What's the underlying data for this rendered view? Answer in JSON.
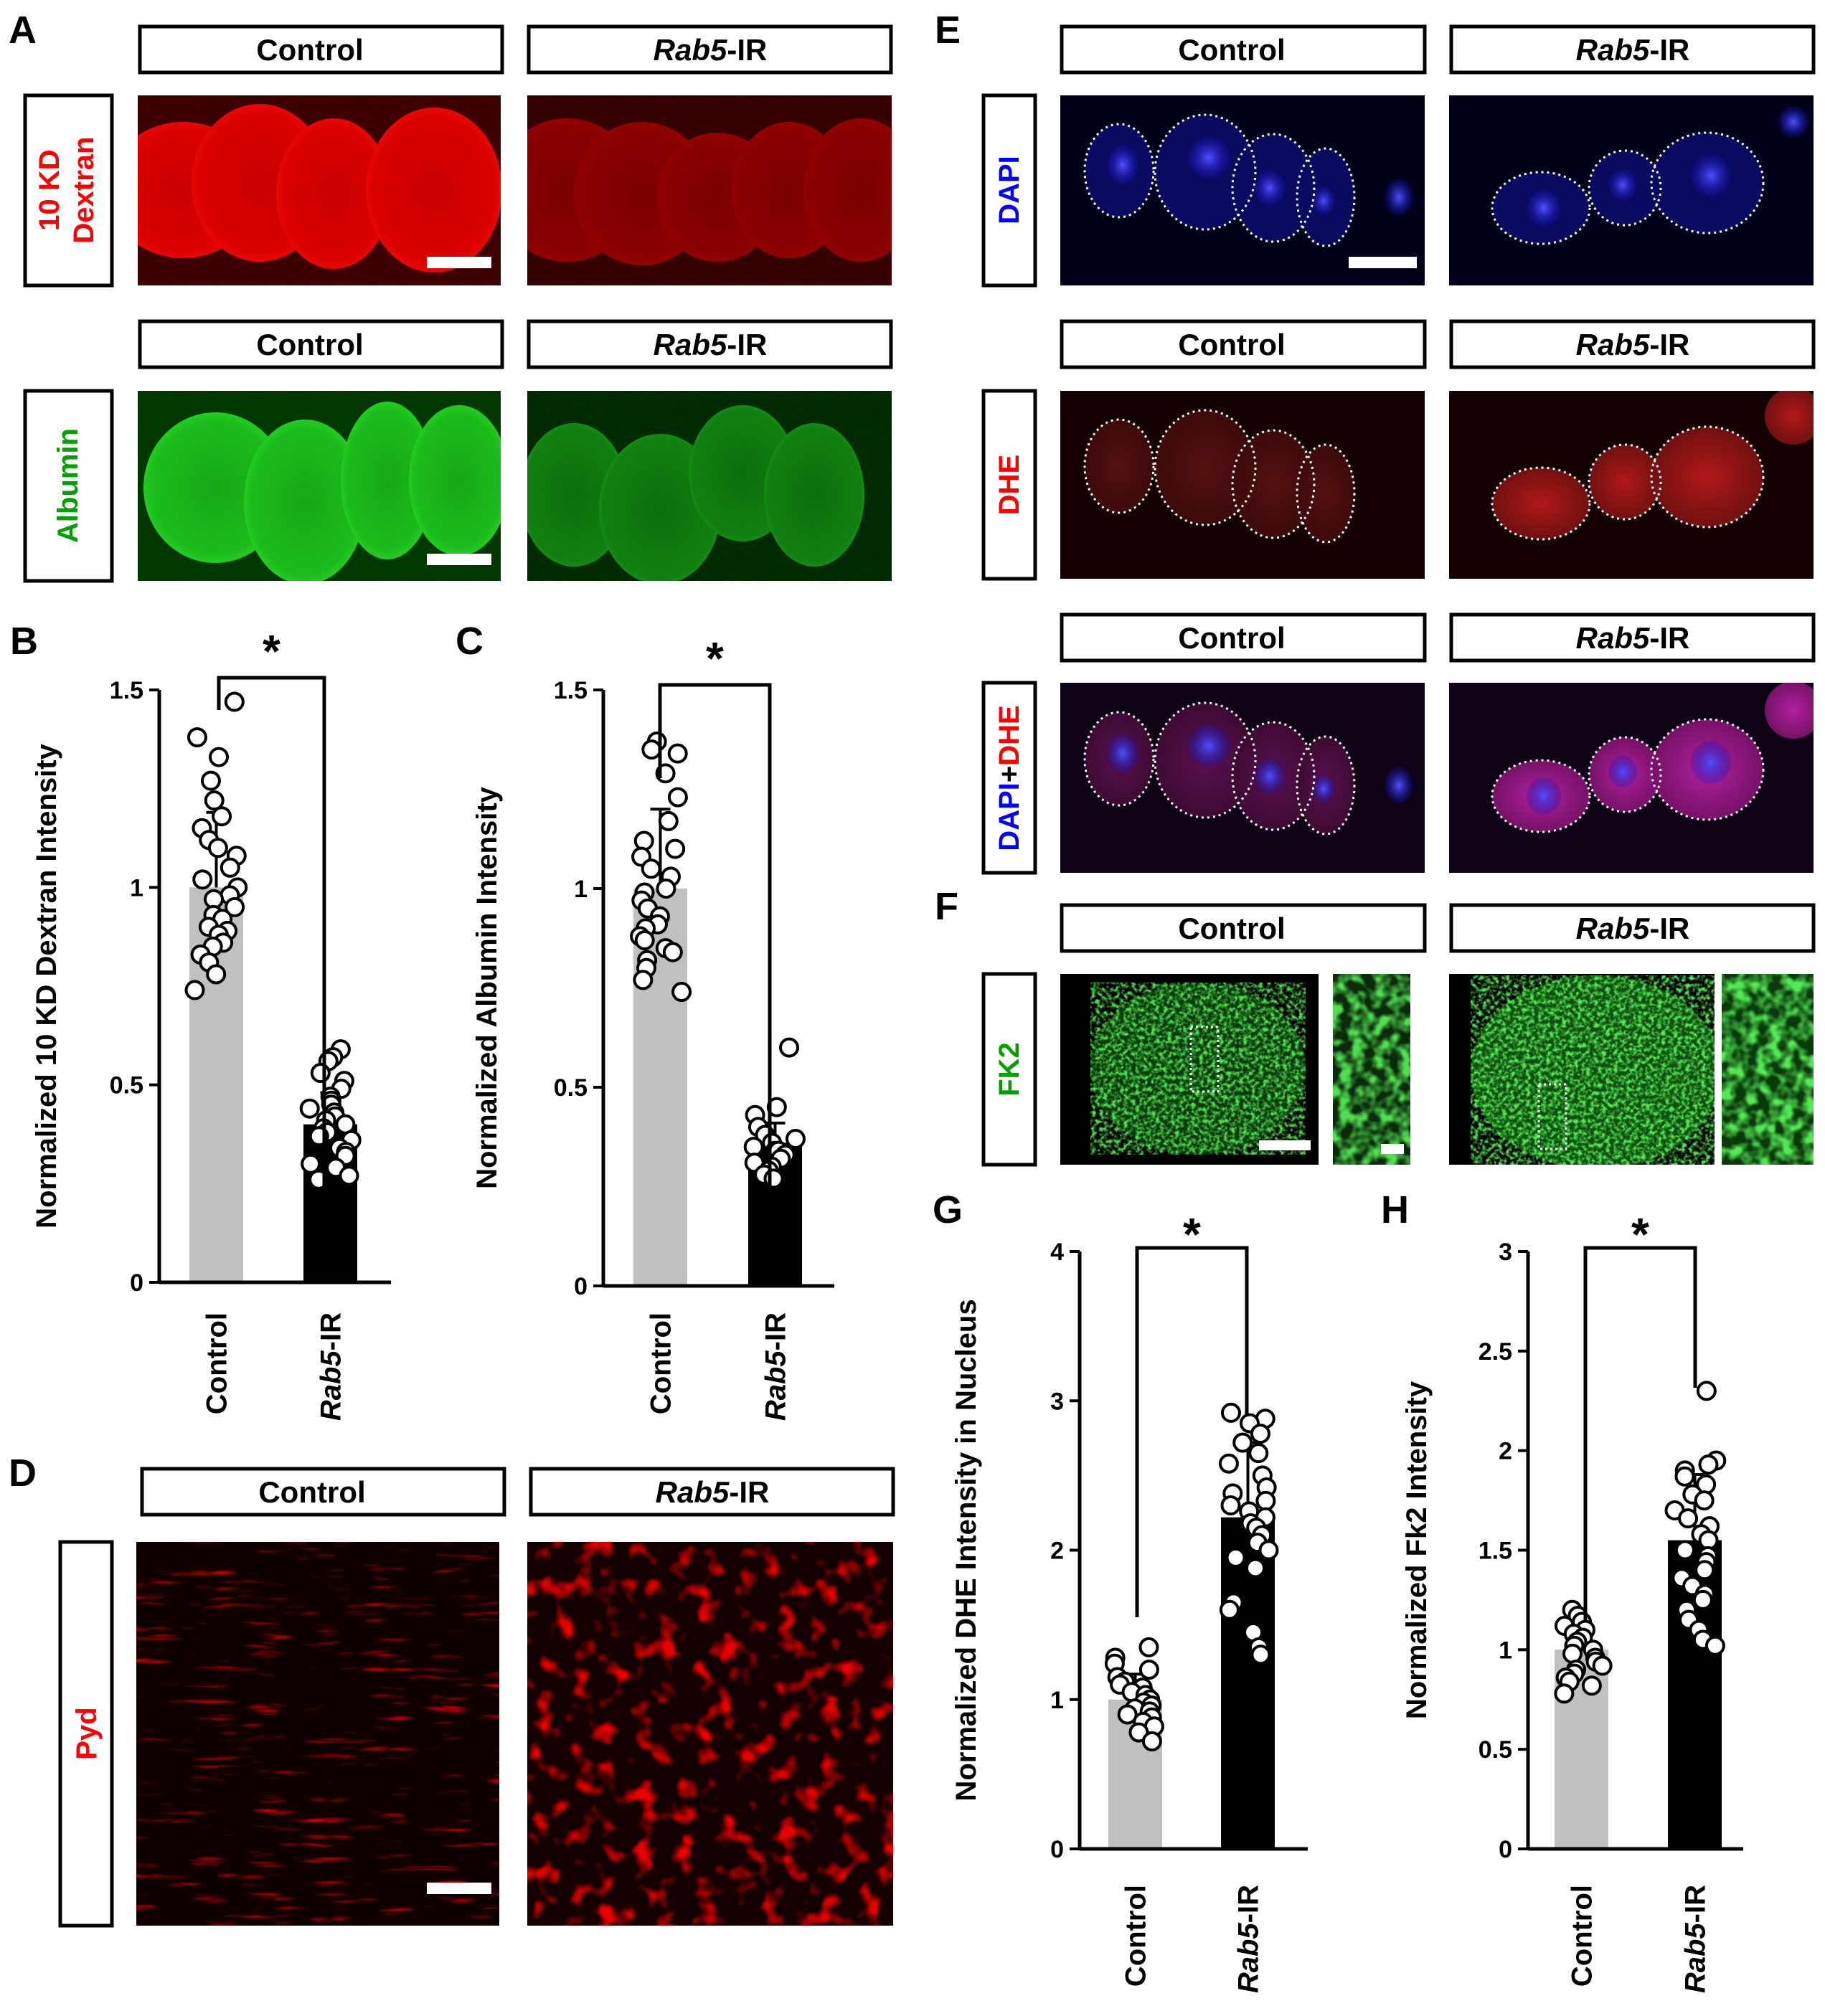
{
  "panels": {
    "A": {
      "letter": "A",
      "rows": [
        {
          "label_lines": [
            "10 KD",
            "Dextran"
          ],
          "color": "#ff0000",
          "headers": [
            "Control",
            "Rab5-IR"
          ]
        },
        {
          "label_lines": [
            "Albumin"
          ],
          "color": "#00a000",
          "headers": [
            "Control",
            "Rab5-IR"
          ]
        }
      ]
    },
    "D": {
      "letter": "D",
      "label": "Pyd",
      "color": "#ff0000",
      "headers": [
        "Control",
        "Rab5-IR"
      ]
    },
    "E": {
      "letter": "E",
      "rows": [
        {
          "label": "DAPI",
          "headers": [
            "Control",
            "Rab5-IR"
          ]
        },
        {
          "label": "DHE",
          "headers": [
            "Control",
            "Rab5-IR"
          ]
        },
        {
          "label_parts": [
            "DAPI",
            "+",
            "DHE"
          ],
          "headers": [
            "Control",
            "Rab5-IR"
          ]
        }
      ]
    },
    "F": {
      "letter": "F",
      "label": "FK2",
      "color": "#00a000",
      "headers": [
        "Control",
        "Rab5-IR"
      ]
    }
  },
  "rab5_header": {
    "italic": "Rab5",
    "rest": "-IR"
  },
  "colors": {
    "red": "#ff0000",
    "green": "#00a000",
    "blue": "#0000ff",
    "control_bar": "#c0c0c0",
    "rab5_bar": "#000000"
  },
  "chart_data": [
    {
      "id": "B",
      "type": "bar",
      "panel_letter": "B",
      "ylabel": "Normalized 10 KD Dextran Intensity",
      "ylim": [
        0,
        1.5
      ],
      "yticks": [
        0,
        0.5,
        1,
        1.5
      ],
      "ytick_labels": [
        "0",
        "0.5",
        "1",
        "1.5"
      ],
      "categories": [
        "Control",
        "Rab5-IR"
      ],
      "category_labels": [
        {
          "text": "Control"
        },
        {
          "italic": "Rab5",
          "rest": "-IR"
        }
      ],
      "values": [
        1.0,
        0.4
      ],
      "errors": [
        0.19,
        0.08
      ],
      "significance": "*",
      "points": [
        [
          1.47,
          1.38,
          1.33,
          1.27,
          1.22,
          1.18,
          1.15,
          1.12,
          1.1,
          1.08,
          1.05,
          1.02,
          1.0,
          0.98,
          0.97,
          0.95,
          0.93,
          0.92,
          0.9,
          0.89,
          0.88,
          0.86,
          0.85,
          0.83,
          0.81,
          0.78,
          0.74
        ],
        [
          0.59,
          0.57,
          0.56,
          0.53,
          0.51,
          0.49,
          0.47,
          0.46,
          0.45,
          0.44,
          0.43,
          0.42,
          0.41,
          0.4,
          0.39,
          0.38,
          0.37,
          0.36,
          0.34,
          0.33,
          0.32,
          0.3,
          0.29,
          0.27,
          0.26
        ]
      ]
    },
    {
      "id": "C",
      "type": "bar",
      "panel_letter": "C",
      "ylabel": "Normalized Albumin Intensity",
      "ylim": [
        0,
        1.5
      ],
      "yticks": [
        0,
        0.5,
        1,
        1.5
      ],
      "ytick_labels": [
        "0",
        "0.5",
        "1",
        "1.5"
      ],
      "categories": [
        "Control",
        "Rab5-IR"
      ],
      "category_labels": [
        {
          "text": "Control"
        },
        {
          "italic": "Rab5",
          "rest": "-IR"
        }
      ],
      "values": [
        1.0,
        0.36
      ],
      "errors": [
        0.2,
        0.05
      ],
      "significance": "*",
      "points": [
        [
          1.37,
          1.35,
          1.34,
          1.29,
          1.23,
          1.17,
          1.12,
          1.1,
          1.08,
          1.05,
          1.03,
          1.0,
          0.99,
          0.97,
          0.95,
          0.93,
          0.91,
          0.9,
          0.88,
          0.87,
          0.85,
          0.84,
          0.82,
          0.8,
          0.77,
          0.74
        ],
        [
          0.6,
          0.45,
          0.43,
          0.4,
          0.38,
          0.37,
          0.36,
          0.35,
          0.34,
          0.34,
          0.33,
          0.32,
          0.31,
          0.3,
          0.29,
          0.28,
          0.27
        ]
      ]
    },
    {
      "id": "G",
      "type": "bar",
      "panel_letter": "G",
      "ylabel": "Normalized DHE Intensity in Nucleus",
      "ylim": [
        0,
        4
      ],
      "yticks": [
        0,
        1,
        2,
        3,
        4
      ],
      "ytick_labels": [
        "0",
        "1",
        "2",
        "3",
        "4"
      ],
      "categories": [
        "Control",
        "Rab5-IR"
      ],
      "category_labels": [
        {
          "text": "Control"
        },
        {
          "italic": "Rab5",
          "rest": "-IR"
        }
      ],
      "values": [
        1.0,
        2.22
      ],
      "errors": [
        0.17,
        0.5
      ],
      "significance": "*",
      "points": [
        [
          1.35,
          1.28,
          1.24,
          1.2,
          1.15,
          1.12,
          1.1,
          1.08,
          1.05,
          1.03,
          1.0,
          0.98,
          0.96,
          0.94,
          0.92,
          0.9,
          0.88,
          0.85,
          0.82,
          0.78,
          0.72
        ],
        [
          2.92,
          2.88,
          2.85,
          2.78,
          2.72,
          2.65,
          2.58,
          2.5,
          2.42,
          2.38,
          2.33,
          2.3,
          2.26,
          2.22,
          2.18,
          2.15,
          2.1,
          2.05,
          2.0,
          1.95,
          1.88,
          1.65,
          1.6,
          1.45,
          1.35,
          1.3
        ]
      ]
    },
    {
      "id": "H",
      "type": "bar",
      "panel_letter": "H",
      "ylabel": "Normalized Fk2 Intensity",
      "ylim": [
        0,
        3
      ],
      "yticks": [
        0,
        0.5,
        1,
        1.5,
        2,
        2.5,
        3
      ],
      "ytick_labels": [
        "0",
        "0.5",
        "1",
        "1.5",
        "2",
        "2.5",
        "3"
      ],
      "categories": [
        "Control",
        "Rab5-IR"
      ],
      "category_labels": [
        {
          "text": "Control"
        },
        {
          "italic": "Rab5",
          "rest": "-IR"
        }
      ],
      "values": [
        1.0,
        1.55
      ],
      "errors": [
        0.12,
        0.33
      ],
      "significance": "*",
      "points": [
        [
          1.2,
          1.17,
          1.14,
          1.12,
          1.1,
          1.08,
          1.06,
          1.04,
          1.02,
          1.0,
          0.98,
          0.96,
          0.94,
          0.92,
          0.9,
          0.88,
          0.86,
          0.84,
          0.82,
          0.78
        ],
        [
          2.3,
          1.95,
          1.93,
          1.9,
          1.87,
          1.83,
          1.78,
          1.75,
          1.7,
          1.66,
          1.62,
          1.58,
          1.55,
          1.5,
          1.47,
          1.44,
          1.4,
          1.36,
          1.32,
          1.28,
          1.25,
          1.2,
          1.15,
          1.1,
          1.05,
          1.02
        ]
      ]
    }
  ]
}
